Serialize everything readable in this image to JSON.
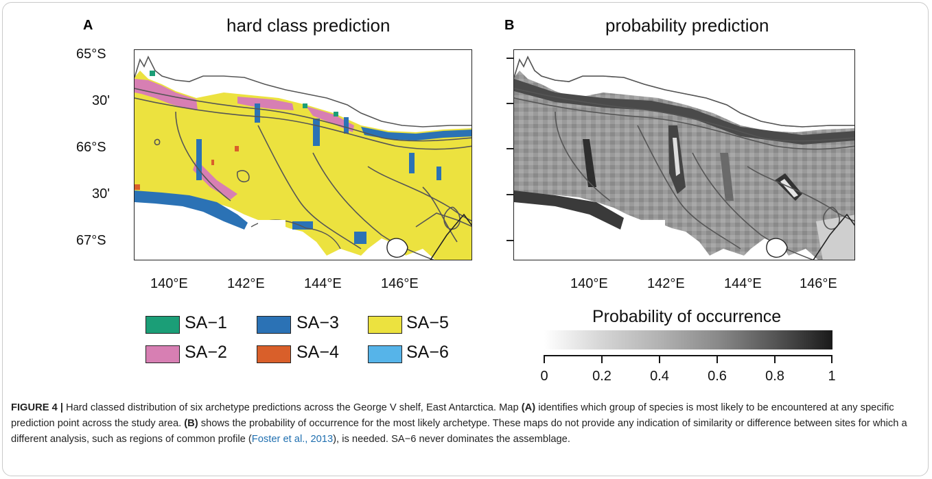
{
  "panels": {
    "a": {
      "letter": "A",
      "title": "hard class prediction"
    },
    "b": {
      "letter": "B",
      "title": "probability prediction"
    }
  },
  "lat_ticks": [
    "65°S",
    "30'",
    "66°S",
    "30'",
    "67°S"
  ],
  "lon_ticks": [
    "140°E",
    "142°E",
    "144°E",
    "146°E"
  ],
  "legend": {
    "items": [
      {
        "label": "SA−1",
        "color": "#1b9e77"
      },
      {
        "label": "SA−2",
        "color": "#d77fb3"
      },
      {
        "label": "SA−3",
        "color": "#2b72b5"
      },
      {
        "label": "SA−4",
        "color": "#d95f2a"
      },
      {
        "label": "SA−5",
        "color": "#ece23f"
      },
      {
        "label": "SA−6",
        "color": "#56b4e9"
      }
    ]
  },
  "colorbar": {
    "title": "Probability of occurrence",
    "ticks": [
      "0",
      "0.2",
      "0.4",
      "0.6",
      "0.8",
      "1"
    ]
  },
  "caption": {
    "lead": "FIGURE 4 |",
    "text1": " Hard classed distribution of six archetype predictions across the George V shelf, East Antarctica. Map ",
    "a": "(A)",
    "text2": " identifies which group of species is most likely to be encountered at any specific prediction point across the study area. ",
    "b": "(B)",
    "text3": " shows the probability of occurrence for the most likely archetype. These maps do not provide any indication of similarity or difference between sites for which a different analysis, such as regions of common profile (",
    "cite": "Foster et al., 2013",
    "text4": "), is needed. SA−6 never dominates the assemblage."
  }
}
